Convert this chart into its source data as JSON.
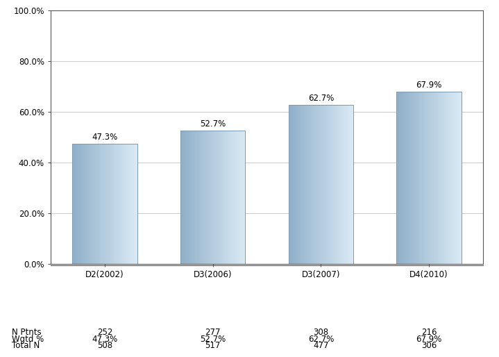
{
  "categories": [
    "D2(2002)",
    "D3(2006)",
    "D3(2007)",
    "D4(2010)"
  ],
  "values": [
    47.3,
    52.7,
    62.7,
    67.9
  ],
  "labels": [
    "47.3%",
    "52.7%",
    "62.7%",
    "67.9%"
  ],
  "n_ptnts": [
    "252",
    "277",
    "308",
    "216"
  ],
  "wgtd_pct": [
    "47.3%",
    "52.7%",
    "62.7%",
    "67.9%"
  ],
  "total_n": [
    "508",
    "517",
    "477",
    "306"
  ],
  "ylim": [
    0,
    100
  ],
  "yticks": [
    0,
    20,
    40,
    60,
    80,
    100
  ],
  "ytick_labels": [
    "0.0%",
    "20.0%",
    "40.0%",
    "60.0%",
    "80.0%",
    "100.0%"
  ],
  "background_color": "#ffffff",
  "grid_color": "#cccccc",
  "text_color": "#000000",
  "axis_label_fontsize": 8.5,
  "value_label_fontsize": 8.5,
  "table_fontsize": 8.5,
  "bar_width": 0.6,
  "table_row_labels": [
    "N Ptnts",
    "Wgtd %",
    "Total N"
  ],
  "bar_left_color": "#8fafc8",
  "bar_right_color": "#daeaf5",
  "bar_edge_color": "#7a9ab5"
}
